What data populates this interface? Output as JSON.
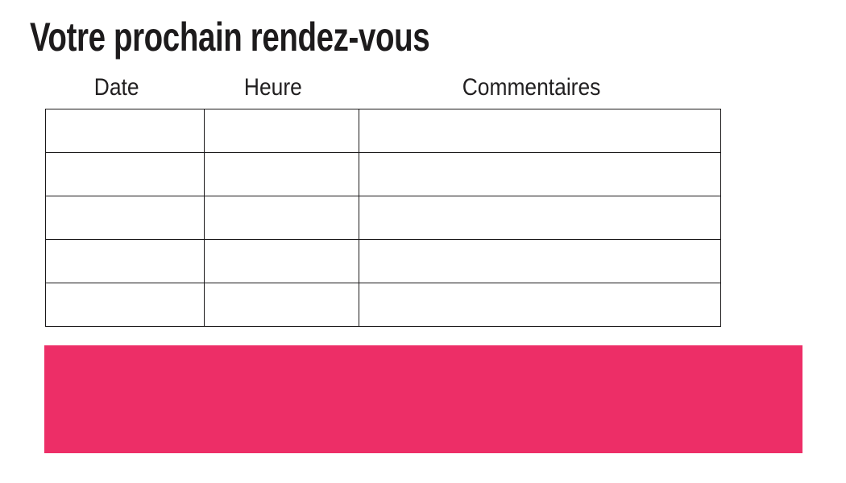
{
  "title": "Votre prochain rendez-vous",
  "table": {
    "columns": [
      "Date",
      "Heure",
      "Commentaires"
    ],
    "rows": [
      [
        "",
        "",
        ""
      ],
      [
        "",
        "",
        ""
      ],
      [
        "",
        "",
        ""
      ],
      [
        "",
        "",
        ""
      ],
      [
        "",
        "",
        ""
      ]
    ]
  },
  "colors": {
    "accent": "#ed2e67",
    "text": "#1d1b1c",
    "table_border": "#1b191a"
  }
}
